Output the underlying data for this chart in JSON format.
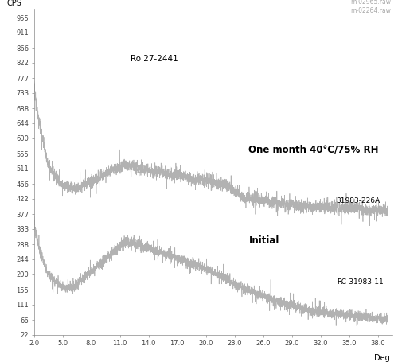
{
  "xlabel": "Deg.",
  "ylabel": "CPS",
  "xlim": [
    2.0,
    39.5
  ],
  "ylim": [
    22,
    980
  ],
  "xticks": [
    2.0,
    5.0,
    8.0,
    11.0,
    14.0,
    17.0,
    20.0,
    23.0,
    26.0,
    29.0,
    32.0,
    35.0,
    38.0
  ],
  "yticks": [
    22,
    66,
    111,
    155,
    200,
    244,
    288,
    333,
    377,
    422,
    466,
    511,
    555,
    600,
    644,
    688,
    733,
    777,
    822,
    866,
    911,
    955
  ],
  "line_color": "#aaaaaa",
  "background_color": "#ffffff",
  "annotation_stored": "One month 40°C/75% RH",
  "annotation_initial": "Initial",
  "annotation_ro": "Ro 27-2441",
  "annotation_31983": "31983-226A",
  "annotation_rc": "RC-31983-11",
  "legend_top_label1": "m-02965.raw",
  "legend_top_label2": "m-02264.raw"
}
